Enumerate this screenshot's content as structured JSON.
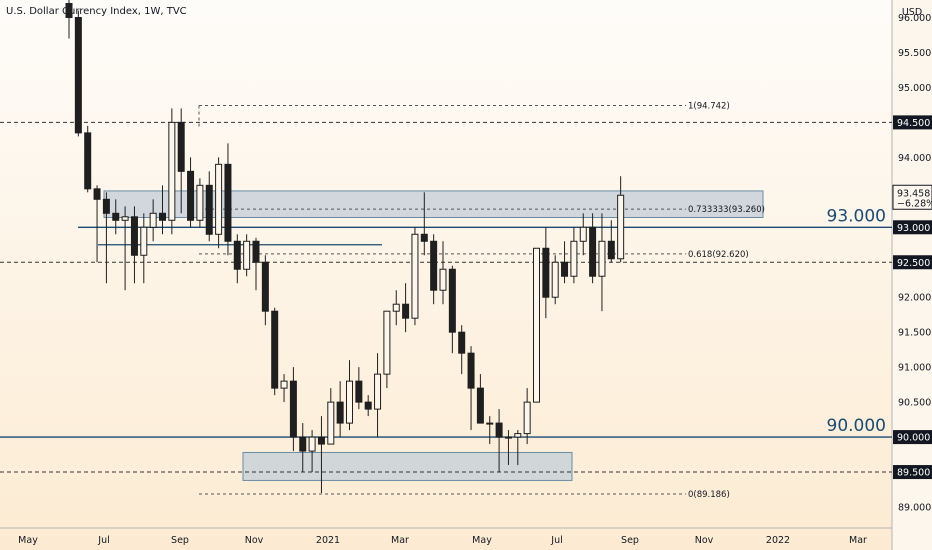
{
  "title": "U.S. Dollar Currency Index, 1W, TVC",
  "currency": "USD",
  "chart_data": {
    "type": "candlestick",
    "ylim": [
      88.7,
      96.25
    ],
    "y_ticks": [
      "96.000",
      "95.500",
      "95.000",
      "94.000",
      "92.000",
      "91.500",
      "91.000",
      "90.500",
      "89.000"
    ],
    "x_ticks": [
      "May",
      "Jul",
      "Sep",
      "Nov",
      "2021",
      "Mar",
      "May",
      "Jul",
      "Sep",
      "Nov",
      "2022",
      "Mar"
    ],
    "candles": [
      [
        96.2,
        96.5,
        95.7,
        96.0
      ],
      [
        96.0,
        96.1,
        94.3,
        94.35
      ],
      [
        94.35,
        94.45,
        93.5,
        93.55
      ],
      [
        93.55,
        93.6,
        92.5,
        93.4
      ],
      [
        93.4,
        93.5,
        92.2,
        93.2
      ],
      [
        93.2,
        93.4,
        92.9,
        93.1
      ],
      [
        93.1,
        93.3,
        92.1,
        93.15
      ],
      [
        93.15,
        93.3,
        92.2,
        92.6
      ],
      [
        92.6,
        93.2,
        92.2,
        93.0
      ],
      [
        93.0,
        93.4,
        92.8,
        93.2
      ],
      [
        93.2,
        93.6,
        92.9,
        93.1
      ],
      [
        93.1,
        94.7,
        92.9,
        94.5
      ],
      [
        94.5,
        94.7,
        93.2,
        93.8
      ],
      [
        93.8,
        94.0,
        93.0,
        93.1
      ],
      [
        93.1,
        93.7,
        93.0,
        93.6
      ],
      [
        93.6,
        93.8,
        92.8,
        92.9
      ],
      [
        92.9,
        94.0,
        92.7,
        93.9
      ],
      [
        93.9,
        94.2,
        92.6,
        92.8
      ],
      [
        92.8,
        92.9,
        92.2,
        92.4
      ],
      [
        92.4,
        92.9,
        92.3,
        92.8
      ],
      [
        92.8,
        92.85,
        92.1,
        92.5
      ],
      [
        92.5,
        92.6,
        91.6,
        91.8
      ],
      [
        91.8,
        91.85,
        90.6,
        90.7
      ],
      [
        90.7,
        90.9,
        90.5,
        90.8
      ],
      [
        90.8,
        91.0,
        89.8,
        90.0
      ],
      [
        90.0,
        90.2,
        89.5,
        89.8
      ],
      [
        89.8,
        90.1,
        89.5,
        90.0
      ],
      [
        90.0,
        90.3,
        89.2,
        89.9
      ],
      [
        89.9,
        90.7,
        89.9,
        90.5
      ],
      [
        90.5,
        90.8,
        90.0,
        90.2
      ],
      [
        90.2,
        91.1,
        90.1,
        90.8
      ],
      [
        90.8,
        91.0,
        90.4,
        90.5
      ],
      [
        90.5,
        90.6,
        90.3,
        90.4
      ],
      [
        90.4,
        91.2,
        90.0,
        90.9
      ],
      [
        90.9,
        91.8,
        90.7,
        91.8
      ],
      [
        91.8,
        92.1,
        91.6,
        91.9
      ],
      [
        91.9,
        92.2,
        91.5,
        91.7
      ],
      [
        91.7,
        93.0,
        91.6,
        92.9
      ],
      [
        92.9,
        93.5,
        92.6,
        92.8
      ],
      [
        92.8,
        92.9,
        91.9,
        92.1
      ],
      [
        92.1,
        92.8,
        91.9,
        92.4
      ],
      [
        92.4,
        92.45,
        91.2,
        91.5
      ],
      [
        91.5,
        91.6,
        90.9,
        91.2
      ],
      [
        91.2,
        91.3,
        90.1,
        90.7
      ],
      [
        90.7,
        90.9,
        90.2,
        90.2
      ],
      [
        90.2,
        90.3,
        89.9,
        90.2
      ],
      [
        90.2,
        90.4,
        89.5,
        90.0
      ],
      [
        90.0,
        90.1,
        89.6,
        90.0
      ],
      [
        90.0,
        90.1,
        89.6,
        90.05
      ],
      [
        90.05,
        90.7,
        89.9,
        90.5
      ],
      [
        90.5,
        92.7,
        90.5,
        92.7
      ],
      [
        92.7,
        93.0,
        91.7,
        92.0
      ],
      [
        92.0,
        92.6,
        91.9,
        92.5
      ],
      [
        92.5,
        92.8,
        92.2,
        92.3
      ],
      [
        92.3,
        93.0,
        92.2,
        92.8
      ],
      [
        92.8,
        93.2,
        92.6,
        93.0
      ],
      [
        93.0,
        93.2,
        92.2,
        92.3
      ],
      [
        92.3,
        93.2,
        91.8,
        92.8
      ],
      [
        92.8,
        93.1,
        92.5,
        92.55
      ],
      [
        92.55,
        93.73,
        92.5,
        93.458
      ]
    ],
    "horizontal_levels": [
      {
        "price": 94.5,
        "style": "dashed",
        "label": "94.500"
      },
      {
        "price": 93.0,
        "style": "solid",
        "label": "93.000",
        "big_label": "93.000"
      },
      {
        "price": 92.5,
        "style": "dashed",
        "label": "92.500"
      },
      {
        "price": 90.0,
        "style": "solid",
        "label": "90.000",
        "big_label": "90.000"
      },
      {
        "price": 89.5,
        "style": "dashed",
        "label": "89.500"
      }
    ],
    "fib_levels": [
      {
        "price": 94.742,
        "label": "1(94.742)"
      },
      {
        "price": 93.26,
        "label": "0.733333(93.260)"
      },
      {
        "price": 92.62,
        "label": "0.618(92.620)"
      },
      {
        "price": 89.186,
        "label": "0(89.186)"
      }
    ],
    "zones": [
      {
        "y_top": 93.52,
        "y_bottom": 93.14
      },
      {
        "y_top": 89.78,
        "y_bottom": 89.38
      }
    ],
    "extra_lines": [
      {
        "price": 92.75
      }
    ],
    "current_price": {
      "price": 93.458,
      "label": "93.458",
      "change": "−6.28%"
    },
    "colors": {
      "candle": "#1f1f1f",
      "level_line": "#1c4a73",
      "zone_fill": "#c5d0d8",
      "zone_border": "#6a8ca3",
      "tag_bg": "#131722",
      "tag_text": "#ffffff"
    }
  }
}
